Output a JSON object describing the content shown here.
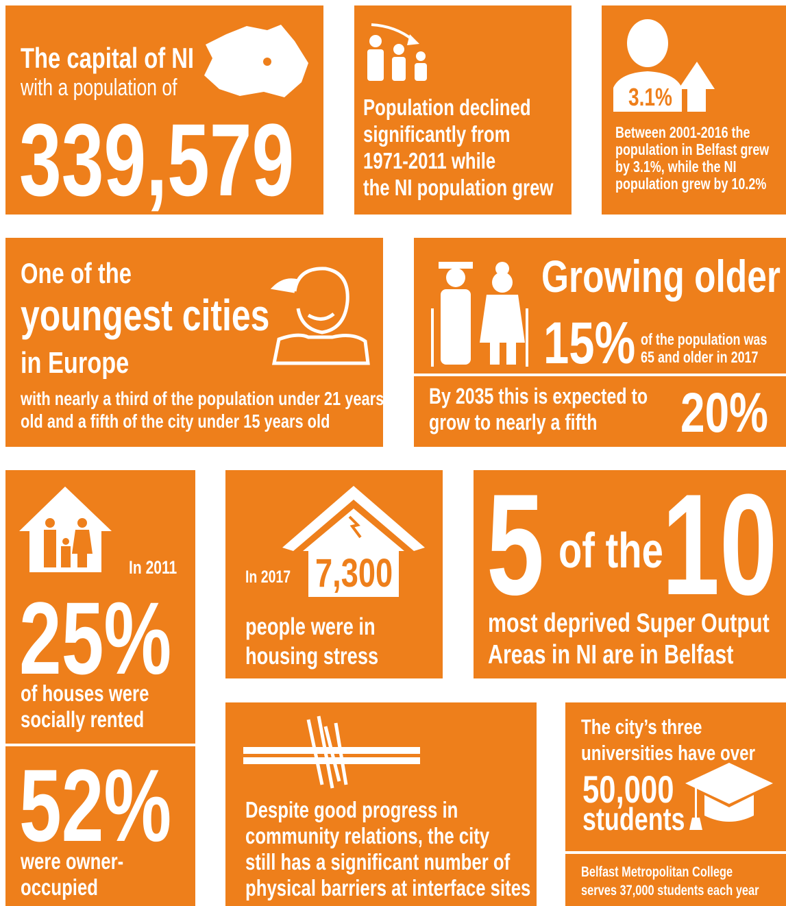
{
  "capital": {
    "title": "The capital of NI",
    "subtitle": "with a population of",
    "figure": "339,579"
  },
  "decline": {
    "lines": [
      "Population declined",
      "significantly from",
      "1971-2011 while",
      "the NI population grew"
    ]
  },
  "growth": {
    "figure": "3.1%",
    "lines": [
      "Between 2001-2016 the",
      "population in Belfast grew",
      "by 3.1%, while the NI",
      "population grew by 10.2%"
    ]
  },
  "young": {
    "lead": "One of the",
    "headline": "youngest cities",
    "tail": "in Europe",
    "lines": [
      "with nearly a third of the population under 21 years",
      "old and a fifth of the city under 15 years old"
    ]
  },
  "older": {
    "title": "Growing older",
    "figure": "15%",
    "note": [
      "of the population was",
      "65 and older in 2017"
    ],
    "forecast": [
      "By 2035 this is expected to",
      "grow to nearly a fifth"
    ],
    "forecast_figure": "20%"
  },
  "housing": {
    "year": "In 2011",
    "social_figure": "25%",
    "social_lines": [
      "of houses were",
      "socially rented"
    ],
    "owner_figure": "52%",
    "owner_lines": [
      "were owner-",
      "occupied"
    ]
  },
  "stress": {
    "year": "In 2017",
    "figure": "7,300",
    "lines": [
      "people were in",
      "housing stress"
    ]
  },
  "deprived": {
    "count": "5",
    "middle": "of the",
    "total": "10",
    "lines": [
      "most deprived Super Output",
      "Areas in NI are in Belfast"
    ]
  },
  "barriers": {
    "lines": [
      "Despite good progress in",
      "community relations, the city",
      "still has a significant number of",
      "physical barriers at interface sites"
    ]
  },
  "students": {
    "lines": [
      "The city’s three",
      "universities have over"
    ],
    "figure": "50,000",
    "unit": "students",
    "college": [
      "Belfast Metropolitan College",
      "serves 37,000 students each year"
    ]
  }
}
